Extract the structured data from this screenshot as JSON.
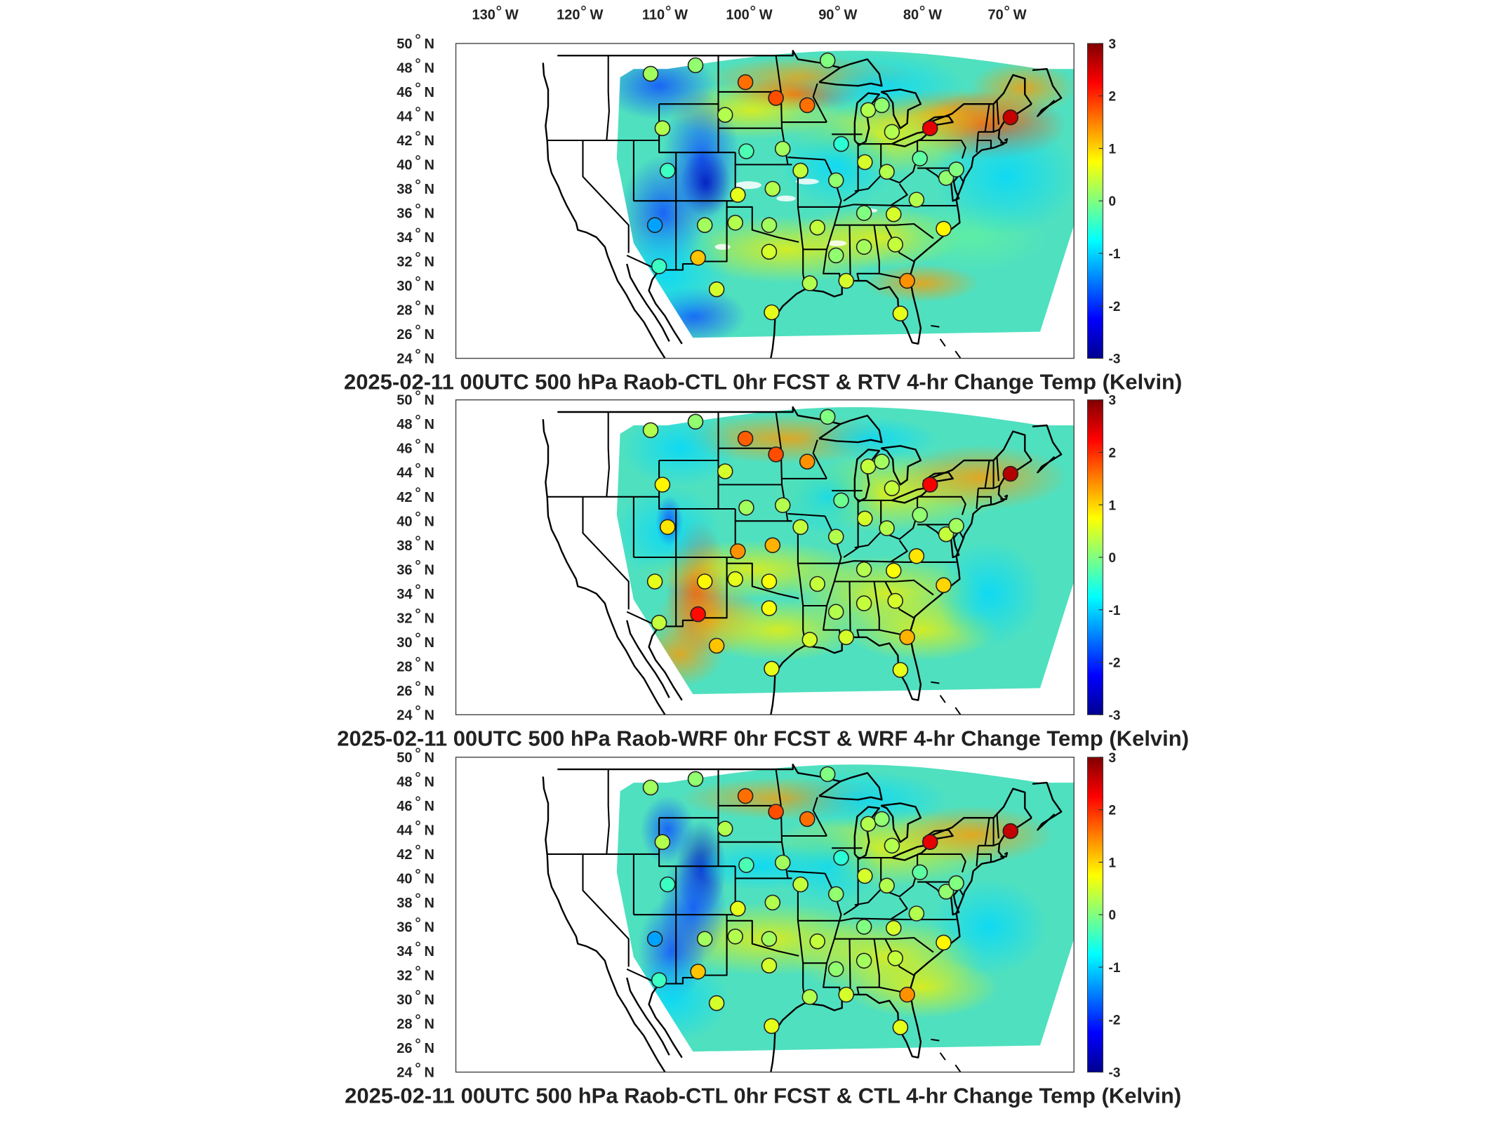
{
  "x_axis_labels": [
    {
      "deg": "130",
      "hemi": "W"
    },
    {
      "deg": "120",
      "hemi": "W"
    },
    {
      "deg": "110",
      "hemi": "W"
    },
    {
      "deg": "100",
      "hemi": "W"
    },
    {
      "deg": "90",
      "hemi": "W"
    },
    {
      "deg": "80",
      "hemi": "W"
    },
    {
      "deg": "70",
      "hemi": "W"
    }
  ],
  "y_axis_labels": [
    {
      "deg": "50",
      "hemi": "N"
    },
    {
      "deg": "48",
      "hemi": "N"
    },
    {
      "deg": "46",
      "hemi": "N"
    },
    {
      "deg": "44",
      "hemi": "N"
    },
    {
      "deg": "42",
      "hemi": "N"
    },
    {
      "deg": "40",
      "hemi": "N"
    },
    {
      "deg": "38",
      "hemi": "N"
    },
    {
      "deg": "36",
      "hemi": "N"
    },
    {
      "deg": "34",
      "hemi": "N"
    },
    {
      "deg": "32",
      "hemi": "N"
    },
    {
      "deg": "30",
      "hemi": "N"
    },
    {
      "deg": "28",
      "hemi": "N"
    },
    {
      "deg": "26",
      "hemi": "N"
    },
    {
      "deg": "24",
      "hemi": "N"
    }
  ],
  "colorbar_ticks": [
    "3",
    "2",
    "1",
    "0",
    "-1",
    "-2",
    "-3"
  ],
  "colorbar_range": [
    -3,
    3
  ],
  "colormap": [
    "#00008f",
    "#0000ff",
    "#0080ff",
    "#00ffff",
    "#80ff80",
    "#ffff00",
    "#ff8000",
    "#ff0000",
    "#800000"
  ],
  "panels": [
    {
      "title": "2025-02-11 00UTC 500 hPa Raob-CTL 0hr FCST & RTV 4-hr Change Temp (Kelvin)",
      "stations": [
        {
          "lon": -112.0,
          "lat": 47.5,
          "value": 0.2
        },
        {
          "lon": -106.7,
          "lat": 48.2,
          "value": 0.1
        },
        {
          "lon": -100.8,
          "lat": 46.8,
          "value": 1.6
        },
        {
          "lon": -97.2,
          "lat": 45.5,
          "value": 1.8
        },
        {
          "lon": -93.5,
          "lat": 44.9,
          "value": 1.6
        },
        {
          "lon": -91.1,
          "lat": 48.6,
          "value": 0.0
        },
        {
          "lon": -103.2,
          "lat": 44.1,
          "value": 0.3
        },
        {
          "lon": -110.6,
          "lat": 43.0,
          "value": 0.3
        },
        {
          "lon": -100.7,
          "lat": 41.1,
          "value": -0.3
        },
        {
          "lon": -96.4,
          "lat": 41.3,
          "value": 0.2
        },
        {
          "lon": -89.5,
          "lat": 41.7,
          "value": -0.5
        },
        {
          "lon": -86.3,
          "lat": 44.5,
          "value": 0.3
        },
        {
          "lon": -84.7,
          "lat": 44.9,
          "value": 0.1
        },
        {
          "lon": -83.5,
          "lat": 42.7,
          "value": 0.3
        },
        {
          "lon": -79.0,
          "lat": 43.0,
          "value": 2.4
        },
        {
          "lon": -69.5,
          "lat": 43.9,
          "value": 2.6
        },
        {
          "lon": -80.2,
          "lat": 40.5,
          "value": -0.2
        },
        {
          "lon": -84.1,
          "lat": 39.4,
          "value": 0.3
        },
        {
          "lon": -86.7,
          "lat": 40.2,
          "value": 0.5
        },
        {
          "lon": -90.1,
          "lat": 38.7,
          "value": 0.1
        },
        {
          "lon": -94.3,
          "lat": 39.5,
          "value": 0.4
        },
        {
          "lon": -97.6,
          "lat": 38.0,
          "value": 0.3
        },
        {
          "lon": -101.7,
          "lat": 37.5,
          "value": 0.6
        },
        {
          "lon": -110.0,
          "lat": 39.5,
          "value": -0.4
        },
        {
          "lon": -111.5,
          "lat": 35.0,
          "value": -1.3
        },
        {
          "lon": -105.6,
          "lat": 35.0,
          "value": 0.2
        },
        {
          "lon": -102.0,
          "lat": 35.2,
          "value": 0.3
        },
        {
          "lon": -98.0,
          "lat": 35.0,
          "value": 0.2
        },
        {
          "lon": -92.3,
          "lat": 34.8,
          "value": 0.4
        },
        {
          "lon": -86.8,
          "lat": 36.0,
          "value": 0.0
        },
        {
          "lon": -83.3,
          "lat": 35.9,
          "value": 0.5
        },
        {
          "lon": -80.6,
          "lat": 37.1,
          "value": 0.3
        },
        {
          "lon": -77.1,
          "lat": 38.9,
          "value": 0.1
        },
        {
          "lon": -75.9,
          "lat": 39.6,
          "value": 0.0
        },
        {
          "lon": -77.4,
          "lat": 34.7,
          "value": 0.8
        },
        {
          "lon": -83.1,
          "lat": 33.4,
          "value": 0.4
        },
        {
          "lon": -86.8,
          "lat": 33.2,
          "value": 0.2
        },
        {
          "lon": -90.1,
          "lat": 32.5,
          "value": 0.1
        },
        {
          "lon": -98.0,
          "lat": 32.8,
          "value": 0.5
        },
        {
          "lon": -106.4,
          "lat": 32.3,
          "value": 1.1
        },
        {
          "lon": -111.0,
          "lat": 31.6,
          "value": -0.4
        },
        {
          "lon": -104.2,
          "lat": 29.7,
          "value": 0.5
        },
        {
          "lon": -97.7,
          "lat": 27.8,
          "value": 0.6
        },
        {
          "lon": -93.2,
          "lat": 30.2,
          "value": 0.3
        },
        {
          "lon": -88.9,
          "lat": 30.4,
          "value": 0.5
        },
        {
          "lon": -82.5,
          "lat": 27.7,
          "value": 0.6
        },
        {
          "lon": -81.7,
          "lat": 30.4,
          "value": 1.4
        }
      ]
    },
    {
      "title": "2025-02-11 00UTC 500 hPa Raob-WRF 0hr FCST & WRF 4-hr Change Temp (Kelvin)",
      "stations": [
        {
          "lon": -112.0,
          "lat": 47.5,
          "value": 0.3
        },
        {
          "lon": -106.7,
          "lat": 48.2,
          "value": 0.1
        },
        {
          "lon": -100.8,
          "lat": 46.8,
          "value": 1.7
        },
        {
          "lon": -97.2,
          "lat": 45.5,
          "value": 1.8
        },
        {
          "lon": -93.5,
          "lat": 44.9,
          "value": 1.4
        },
        {
          "lon": -91.1,
          "lat": 48.6,
          "value": 0.0
        },
        {
          "lon": -103.2,
          "lat": 44.1,
          "value": 0.5
        },
        {
          "lon": -110.6,
          "lat": 43.0,
          "value": 0.8
        },
        {
          "lon": -100.7,
          "lat": 41.1,
          "value": 0.2
        },
        {
          "lon": -96.4,
          "lat": 41.3,
          "value": 0.3
        },
        {
          "lon": -89.5,
          "lat": 41.7,
          "value": -0.1
        },
        {
          "lon": -86.3,
          "lat": 44.5,
          "value": 0.4
        },
        {
          "lon": -84.7,
          "lat": 44.9,
          "value": 0.2
        },
        {
          "lon": -83.5,
          "lat": 42.7,
          "value": 0.4
        },
        {
          "lon": -79.0,
          "lat": 43.0,
          "value": 2.3
        },
        {
          "lon": -69.5,
          "lat": 43.9,
          "value": 2.7
        },
        {
          "lon": -80.2,
          "lat": 40.5,
          "value": 0.1
        },
        {
          "lon": -84.1,
          "lat": 39.4,
          "value": 0.3
        },
        {
          "lon": -86.7,
          "lat": 40.2,
          "value": 0.5
        },
        {
          "lon": -90.1,
          "lat": 38.7,
          "value": 0.3
        },
        {
          "lon": -94.3,
          "lat": 39.5,
          "value": 0.4
        },
        {
          "lon": -97.6,
          "lat": 38.0,
          "value": 1.2
        },
        {
          "lon": -101.7,
          "lat": 37.5,
          "value": 1.4
        },
        {
          "lon": -110.0,
          "lat": 39.5,
          "value": 0.9
        },
        {
          "lon": -111.5,
          "lat": 35.0,
          "value": 0.6
        },
        {
          "lon": -105.6,
          "lat": 35.0,
          "value": 0.8
        },
        {
          "lon": -102.0,
          "lat": 35.2,
          "value": 0.6
        },
        {
          "lon": -98.0,
          "lat": 35.0,
          "value": 0.7
        },
        {
          "lon": -92.3,
          "lat": 34.8,
          "value": 0.4
        },
        {
          "lon": -86.8,
          "lat": 36.0,
          "value": 0.3
        },
        {
          "lon": -83.3,
          "lat": 35.9,
          "value": 0.7
        },
        {
          "lon": -80.6,
          "lat": 37.1,
          "value": 0.9
        },
        {
          "lon": -77.1,
          "lat": 38.9,
          "value": 0.4
        },
        {
          "lon": -75.9,
          "lat": 39.6,
          "value": 0.2
        },
        {
          "lon": -77.4,
          "lat": 34.7,
          "value": 1.0
        },
        {
          "lon": -83.1,
          "lat": 33.4,
          "value": 0.5
        },
        {
          "lon": -86.8,
          "lat": 33.2,
          "value": 0.4
        },
        {
          "lon": -90.1,
          "lat": 32.5,
          "value": 0.3
        },
        {
          "lon": -98.0,
          "lat": 32.8,
          "value": 0.7
        },
        {
          "lon": -106.4,
          "lat": 32.3,
          "value": 2.2
        },
        {
          "lon": -111.0,
          "lat": 31.6,
          "value": 0.4
        },
        {
          "lon": -104.2,
          "lat": 29.7,
          "value": 1.1
        },
        {
          "lon": -97.7,
          "lat": 27.8,
          "value": 0.6
        },
        {
          "lon": -93.2,
          "lat": 30.2,
          "value": 0.5
        },
        {
          "lon": -88.9,
          "lat": 30.4,
          "value": 0.5
        },
        {
          "lon": -82.5,
          "lat": 27.7,
          "value": 0.6
        },
        {
          "lon": -81.7,
          "lat": 30.4,
          "value": 1.2
        }
      ]
    },
    {
      "title": "2025-02-11 00UTC 500 hPa Raob-CTL 0hr FCST & CTL 4-hr Change Temp (Kelvin)",
      "stations": [
        {
          "lon": -112.0,
          "lat": 47.5,
          "value": 0.2
        },
        {
          "lon": -106.7,
          "lat": 48.2,
          "value": 0.1
        },
        {
          "lon": -100.8,
          "lat": 46.8,
          "value": 1.6
        },
        {
          "lon": -97.2,
          "lat": 45.5,
          "value": 1.8
        },
        {
          "lon": -93.5,
          "lat": 44.9,
          "value": 1.6
        },
        {
          "lon": -91.1,
          "lat": 48.6,
          "value": 0.0
        },
        {
          "lon": -103.2,
          "lat": 44.1,
          "value": 0.3
        },
        {
          "lon": -110.6,
          "lat": 43.0,
          "value": 0.3
        },
        {
          "lon": -100.7,
          "lat": 41.1,
          "value": -0.3
        },
        {
          "lon": -96.4,
          "lat": 41.3,
          "value": 0.2
        },
        {
          "lon": -89.5,
          "lat": 41.7,
          "value": -0.5
        },
        {
          "lon": -86.3,
          "lat": 44.5,
          "value": 0.3
        },
        {
          "lon": -84.7,
          "lat": 44.9,
          "value": 0.1
        },
        {
          "lon": -83.5,
          "lat": 42.7,
          "value": 0.3
        },
        {
          "lon": -79.0,
          "lat": 43.0,
          "value": 2.4
        },
        {
          "lon": -69.5,
          "lat": 43.9,
          "value": 2.6
        },
        {
          "lon": -80.2,
          "lat": 40.5,
          "value": -0.2
        },
        {
          "lon": -84.1,
          "lat": 39.4,
          "value": 0.3
        },
        {
          "lon": -86.7,
          "lat": 40.2,
          "value": 0.5
        },
        {
          "lon": -90.1,
          "lat": 38.7,
          "value": 0.1
        },
        {
          "lon": -94.3,
          "lat": 39.5,
          "value": 0.4
        },
        {
          "lon": -97.6,
          "lat": 38.0,
          "value": 0.3
        },
        {
          "lon": -101.7,
          "lat": 37.5,
          "value": 0.6
        },
        {
          "lon": -110.0,
          "lat": 39.5,
          "value": -0.4
        },
        {
          "lon": -111.5,
          "lat": 35.0,
          "value": -1.3
        },
        {
          "lon": -105.6,
          "lat": 35.0,
          "value": 0.2
        },
        {
          "lon": -102.0,
          "lat": 35.2,
          "value": 0.3
        },
        {
          "lon": -98.0,
          "lat": 35.0,
          "value": 0.2
        },
        {
          "lon": -92.3,
          "lat": 34.8,
          "value": 0.4
        },
        {
          "lon": -86.8,
          "lat": 36.0,
          "value": 0.0
        },
        {
          "lon": -83.3,
          "lat": 35.9,
          "value": 0.5
        },
        {
          "lon": -80.6,
          "lat": 37.1,
          "value": 0.3
        },
        {
          "lon": -77.1,
          "lat": 38.9,
          "value": 0.1
        },
        {
          "lon": -75.9,
          "lat": 39.6,
          "value": 0.0
        },
        {
          "lon": -77.4,
          "lat": 34.7,
          "value": 0.8
        },
        {
          "lon": -83.1,
          "lat": 33.4,
          "value": 0.4
        },
        {
          "lon": -86.8,
          "lat": 33.2,
          "value": 0.2
        },
        {
          "lon": -90.1,
          "lat": 32.5,
          "value": 0.1
        },
        {
          "lon": -98.0,
          "lat": 32.8,
          "value": 0.5
        },
        {
          "lon": -106.4,
          "lat": 32.3,
          "value": 1.1
        },
        {
          "lon": -111.0,
          "lat": 31.6,
          "value": -0.4
        },
        {
          "lon": -104.2,
          "lat": 29.7,
          "value": 0.5
        },
        {
          "lon": -97.7,
          "lat": 27.8,
          "value": 0.6
        },
        {
          "lon": -93.2,
          "lat": 30.2,
          "value": 0.3
        },
        {
          "lon": -88.9,
          "lat": 30.4,
          "value": 0.5
        },
        {
          "lon": -82.5,
          "lat": 27.7,
          "value": 0.6
        },
        {
          "lon": -81.7,
          "lat": 30.4,
          "value": 1.4
        }
      ]
    }
  ]
}
